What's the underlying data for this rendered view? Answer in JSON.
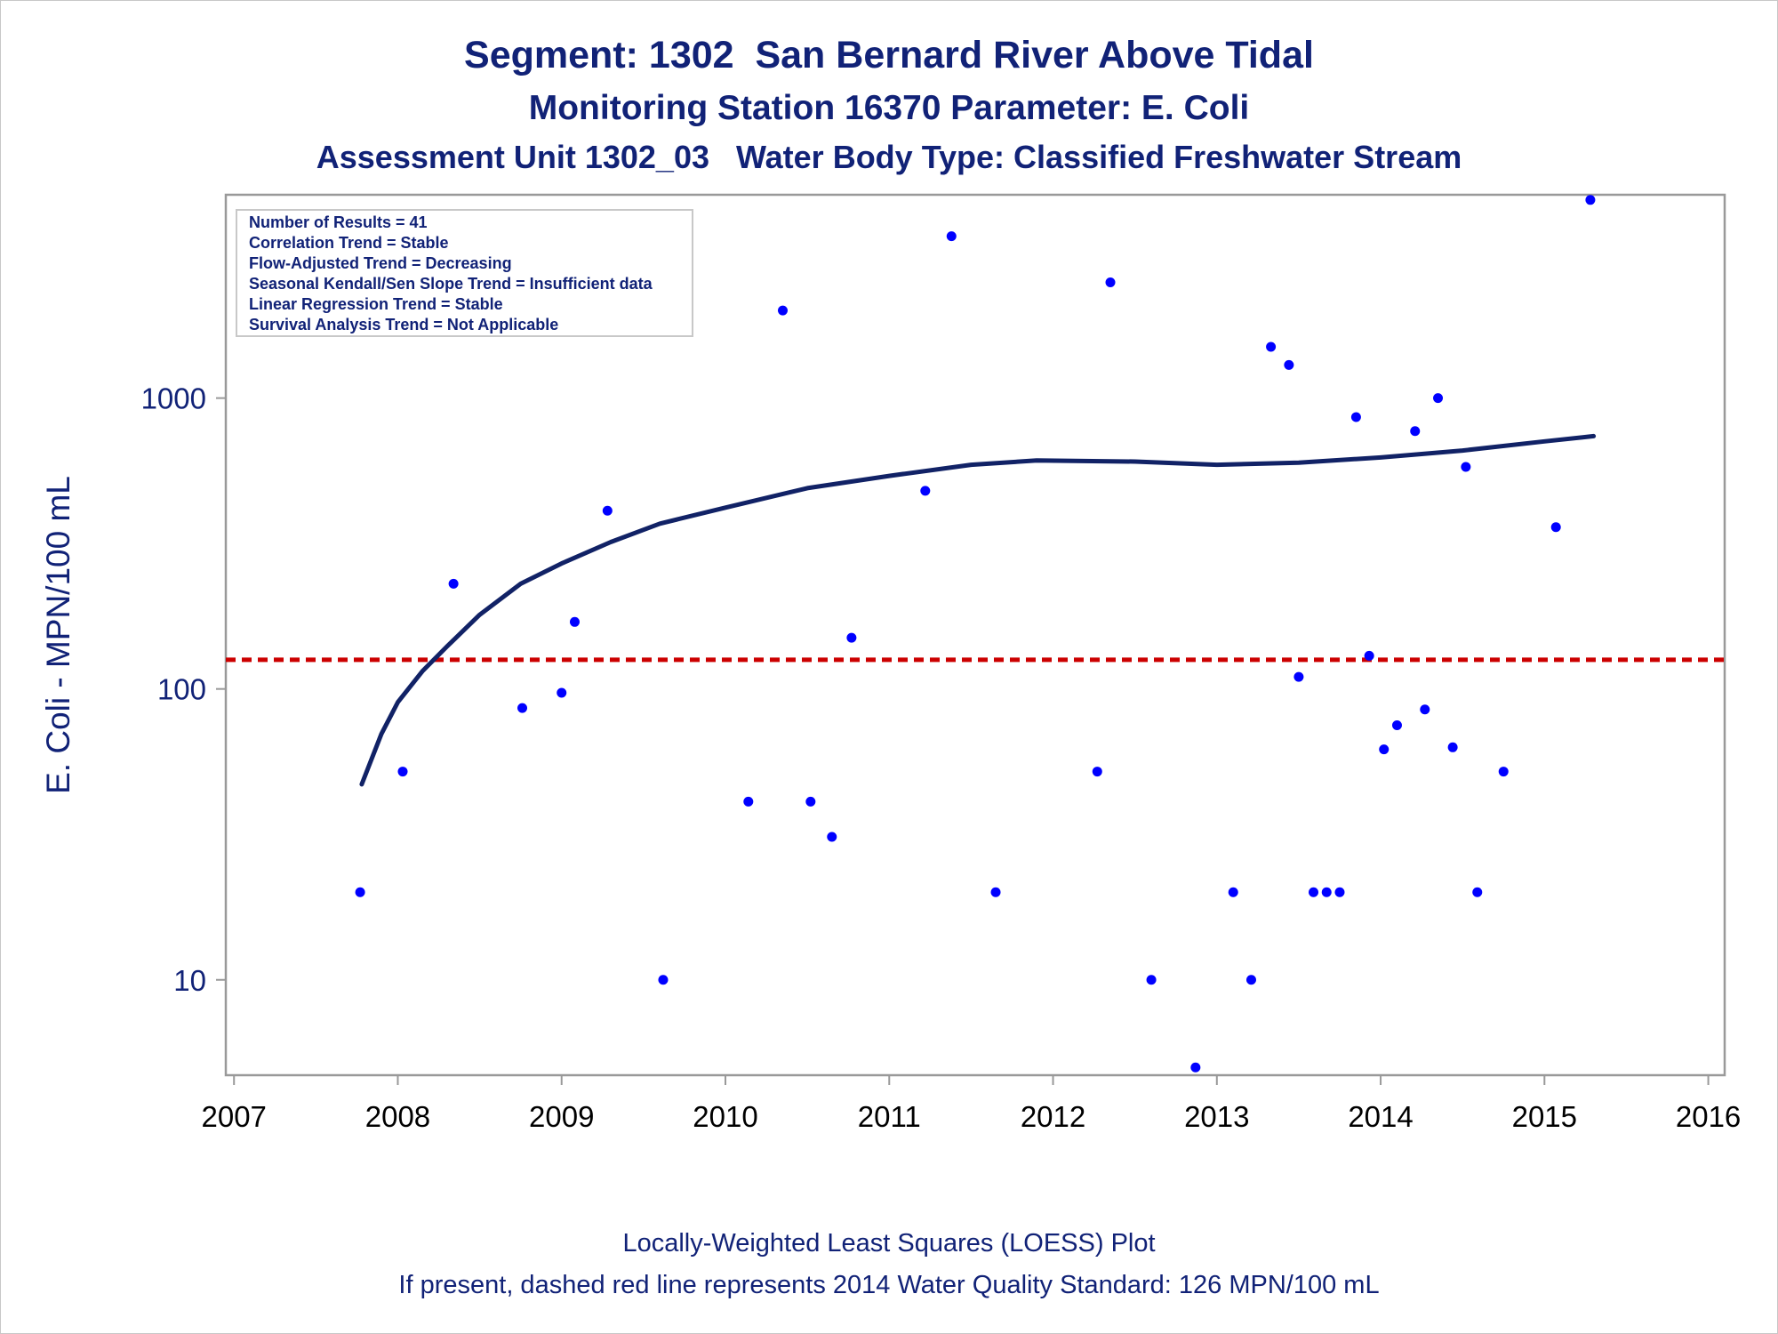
{
  "titles": {
    "line1": "Segment: 1302  San Bernard River Above Tidal",
    "line2": "Monitoring Station 16370 Parameter: E. Coli",
    "line3": "Assessment Unit 1302_03   Water Body Type: Classified Freshwater Stream"
  },
  "footnotes": {
    "line1": "Locally-Weighted Least Squares (LOESS) Plot",
    "line2": "If present, dashed red line represents 2014 Water Quality Standard: 126 MPN/100 mL"
  },
  "chart_data": {
    "type": "scatter",
    "title": "Segment: 1302  San Bernard River Above Tidal",
    "ylabel": "E. Coli - MPN/100 mL",
    "xlabel": "",
    "y_scale": "log",
    "xlim": [
      2006.95,
      2016.1
    ],
    "ylim": [
      4.7,
      5000
    ],
    "x_ticks": [
      2007,
      2008,
      2009,
      2010,
      2011,
      2012,
      2013,
      2014,
      2015,
      2016
    ],
    "x_tick_labels": [
      "2007",
      "2008",
      "2009",
      "2010",
      "2011",
      "2012",
      "2013",
      "2014",
      "2015",
      "2016"
    ],
    "y_ticks": [
      10,
      100,
      1000
    ],
    "y_tick_labels": [
      "10",
      "100",
      "1000"
    ],
    "grid": false,
    "legend_position": "top-left",
    "stats_box": [
      "Number of Results = 41",
      "Correlation Trend = Stable",
      "Flow-Adjusted Trend = Decreasing",
      "Seasonal Kendall/Sen Slope Trend = Insufficient data",
      "Linear Regression Trend = Stable",
      "Survival Analysis Trend = Not Applicable"
    ],
    "colors": {
      "points": "#0000ff",
      "loess": "#112266",
      "standard": "#cc0000",
      "text": "#112277",
      "axis": "#999999"
    },
    "standard_line": {
      "value": 126
    },
    "points": [
      {
        "x": 2007.77,
        "y": 20
      },
      {
        "x": 2008.03,
        "y": 52
      },
      {
        "x": 2008.34,
        "y": 230
      },
      {
        "x": 2008.76,
        "y": 86
      },
      {
        "x": 2009.0,
        "y": 97
      },
      {
        "x": 2009.08,
        "y": 170
      },
      {
        "x": 2009.28,
        "y": 410
      },
      {
        "x": 2009.62,
        "y": 10
      },
      {
        "x": 2010.14,
        "y": 41
      },
      {
        "x": 2010.35,
        "y": 2000
      },
      {
        "x": 2010.52,
        "y": 41
      },
      {
        "x": 2010.65,
        "y": 31
      },
      {
        "x": 2010.77,
        "y": 150
      },
      {
        "x": 2011.22,
        "y": 480
      },
      {
        "x": 2011.38,
        "y": 3600
      },
      {
        "x": 2011.65,
        "y": 20
      },
      {
        "x": 2012.27,
        "y": 52
      },
      {
        "x": 2012.35,
        "y": 2500
      },
      {
        "x": 2012.6,
        "y": 10
      },
      {
        "x": 2012.87,
        "y": 5
      },
      {
        "x": 2013.1,
        "y": 20
      },
      {
        "x": 2013.21,
        "y": 10
      },
      {
        "x": 2013.33,
        "y": 1500
      },
      {
        "x": 2013.44,
        "y": 1300
      },
      {
        "x": 2013.5,
        "y": 110
      },
      {
        "x": 2013.59,
        "y": 20
      },
      {
        "x": 2013.67,
        "y": 20
      },
      {
        "x": 2013.75,
        "y": 20
      },
      {
        "x": 2013.85,
        "y": 860
      },
      {
        "x": 2013.93,
        "y": 130
      },
      {
        "x": 2014.02,
        "y": 62
      },
      {
        "x": 2014.1,
        "y": 75
      },
      {
        "x": 2014.21,
        "y": 770
      },
      {
        "x": 2014.27,
        "y": 85
      },
      {
        "x": 2014.35,
        "y": 1000
      },
      {
        "x": 2014.44,
        "y": 63
      },
      {
        "x": 2014.52,
        "y": 580
      },
      {
        "x": 2014.59,
        "y": 20
      },
      {
        "x": 2014.75,
        "y": 52
      },
      {
        "x": 2015.07,
        "y": 360
      },
      {
        "x": 2015.28,
        "y": 4800
      }
    ],
    "loess": [
      {
        "x": 2007.78,
        "y": 47
      },
      {
        "x": 2007.9,
        "y": 70
      },
      {
        "x": 2008.0,
        "y": 90
      },
      {
        "x": 2008.15,
        "y": 115
      },
      {
        "x": 2008.3,
        "y": 140
      },
      {
        "x": 2008.5,
        "y": 180
      },
      {
        "x": 2008.75,
        "y": 230
      },
      {
        "x": 2009.0,
        "y": 270
      },
      {
        "x": 2009.3,
        "y": 320
      },
      {
        "x": 2009.6,
        "y": 370
      },
      {
        "x": 2010.0,
        "y": 420
      },
      {
        "x": 2010.5,
        "y": 490
      },
      {
        "x": 2011.0,
        "y": 540
      },
      {
        "x": 2011.5,
        "y": 590
      },
      {
        "x": 2011.9,
        "y": 610
      },
      {
        "x": 2012.5,
        "y": 605
      },
      {
        "x": 2013.0,
        "y": 590
      },
      {
        "x": 2013.5,
        "y": 600
      },
      {
        "x": 2014.0,
        "y": 625
      },
      {
        "x": 2014.5,
        "y": 660
      },
      {
        "x": 2015.0,
        "y": 710
      },
      {
        "x": 2015.3,
        "y": 740
      }
    ]
  }
}
